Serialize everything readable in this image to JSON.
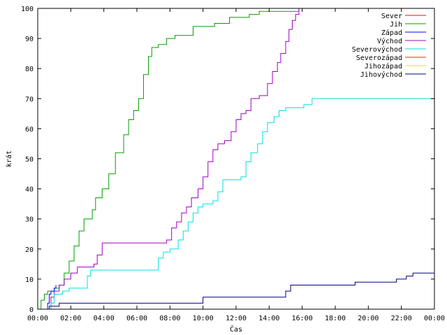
{
  "chart_data": {
    "type": "line",
    "xlabel": "Čas",
    "ylabel": "krát",
    "xlim": [
      0,
      24
    ],
    "ylim": [
      0,
      100
    ],
    "x_ticks": [
      {
        "value": 0,
        "label": "00:00"
      },
      {
        "value": 2,
        "label": "02:00"
      },
      {
        "value": 4,
        "label": "04:00"
      },
      {
        "value": 6,
        "label": "06:00"
      },
      {
        "value": 8,
        "label": "08:00"
      },
      {
        "value": 10,
        "label": "10:00"
      },
      {
        "value": 12,
        "label": "12:00"
      },
      {
        "value": 14,
        "label": "14:00"
      },
      {
        "value": 16,
        "label": "16:00"
      },
      {
        "value": 18,
        "label": "18:00"
      },
      {
        "value": 20,
        "label": "20:00"
      },
      {
        "value": 22,
        "label": "22:00"
      },
      {
        "value": 24,
        "label": "00:00"
      }
    ],
    "y_ticks": [
      {
        "value": 0,
        "label": "0"
      },
      {
        "value": 10,
        "label": "10"
      },
      {
        "value": 20,
        "label": "20"
      },
      {
        "value": 30,
        "label": "30"
      },
      {
        "value": 40,
        "label": "40"
      },
      {
        "value": 50,
        "label": "50"
      },
      {
        "value": 60,
        "label": "60"
      },
      {
        "value": 70,
        "label": "70"
      },
      {
        "value": 80,
        "label": "80"
      },
      {
        "value": 90,
        "label": "90"
      },
      {
        "value": 100,
        "label": "100"
      }
    ],
    "grid": false,
    "legend_position": "top-right",
    "series": [
      {
        "name": "Sever",
        "color": "#ff0000",
        "points": []
      },
      {
        "name": "Jih",
        "color": "#00a000",
        "points": [
          [
            0,
            0
          ],
          [
            0.2,
            3
          ],
          [
            0.4,
            5
          ],
          [
            0.6,
            6
          ],
          [
            1.0,
            7
          ],
          [
            1.3,
            8
          ],
          [
            1.6,
            12
          ],
          [
            1.9,
            16
          ],
          [
            2.2,
            21
          ],
          [
            2.5,
            26
          ],
          [
            2.8,
            30
          ],
          [
            3.3,
            33
          ],
          [
            3.5,
            37
          ],
          [
            3.9,
            40
          ],
          [
            4.3,
            45
          ],
          [
            4.7,
            52
          ],
          [
            5.2,
            58
          ],
          [
            5.5,
            63
          ],
          [
            5.8,
            66
          ],
          [
            6.1,
            70
          ],
          [
            6.4,
            78
          ],
          [
            6.7,
            84
          ],
          [
            6.9,
            87
          ],
          [
            7.3,
            88
          ],
          [
            7.8,
            90
          ],
          [
            8.3,
            91
          ],
          [
            9.4,
            94
          ],
          [
            10.7,
            95
          ],
          [
            11.6,
            97
          ],
          [
            12.8,
            98
          ],
          [
            13.4,
            99
          ],
          [
            15.6,
            99
          ],
          [
            15.8,
            100
          ]
        ]
      },
      {
        "name": "Západ",
        "color": "#0000ff",
        "points": [
          [
            0.5,
            0
          ],
          [
            0.6,
            2
          ],
          [
            0.7,
            5
          ],
          [
            0.8,
            6
          ],
          [
            1.0,
            7
          ],
          [
            1.1,
            8
          ]
        ]
      },
      {
        "name": "Východ",
        "color": "#a000c0",
        "points": [
          [
            0.7,
            0
          ],
          [
            0.8,
            4
          ],
          [
            1.0,
            6
          ],
          [
            1.3,
            8
          ],
          [
            1.6,
            10
          ],
          [
            2.0,
            12
          ],
          [
            2.4,
            14
          ],
          [
            3.4,
            15
          ],
          [
            3.6,
            18
          ],
          [
            3.9,
            22
          ],
          [
            7.8,
            23
          ],
          [
            8.1,
            27
          ],
          [
            8.4,
            29
          ],
          [
            8.7,
            32
          ],
          [
            9.0,
            34
          ],
          [
            9.3,
            37
          ],
          [
            9.7,
            40
          ],
          [
            10.0,
            44
          ],
          [
            10.3,
            49
          ],
          [
            10.6,
            53
          ],
          [
            10.9,
            55
          ],
          [
            11.3,
            56
          ],
          [
            11.7,
            59
          ],
          [
            12.0,
            63
          ],
          [
            12.3,
            65
          ],
          [
            12.6,
            66
          ],
          [
            12.9,
            70
          ],
          [
            13.4,
            71
          ],
          [
            13.9,
            75
          ],
          [
            14.2,
            79
          ],
          [
            14.5,
            82
          ],
          [
            14.7,
            85
          ],
          [
            15.0,
            89
          ],
          [
            15.2,
            93
          ],
          [
            15.4,
            96
          ],
          [
            15.6,
            98
          ],
          [
            15.8,
            100
          ]
        ]
      },
      {
        "name": "Severovýchod",
        "color": "#00e0e0",
        "points": [
          [
            0.6,
            0
          ],
          [
            0.8,
            2
          ],
          [
            1.0,
            5
          ],
          [
            1.5,
            6
          ],
          [
            1.9,
            7
          ],
          [
            3.0,
            11
          ],
          [
            3.2,
            13
          ],
          [
            6.9,
            13
          ],
          [
            7.3,
            17
          ],
          [
            7.6,
            19
          ],
          [
            8.0,
            20
          ],
          [
            8.5,
            23
          ],
          [
            8.8,
            26
          ],
          [
            9.1,
            29
          ],
          [
            9.4,
            32
          ],
          [
            9.7,
            34
          ],
          [
            10.0,
            35
          ],
          [
            10.6,
            36
          ],
          [
            10.9,
            39
          ],
          [
            11.2,
            43
          ],
          [
            12.3,
            44
          ],
          [
            12.6,
            49
          ],
          [
            12.9,
            52
          ],
          [
            13.3,
            55
          ],
          [
            13.6,
            59
          ],
          [
            13.9,
            62
          ],
          [
            14.3,
            64
          ],
          [
            14.6,
            66
          ],
          [
            15.0,
            67
          ],
          [
            15.6,
            67
          ],
          [
            16.1,
            68
          ],
          [
            16.6,
            70
          ],
          [
            24.0,
            70
          ]
        ]
      },
      {
        "name": "Severozápad",
        "color": "#c04000",
        "points": []
      },
      {
        "name": "Jihozápad",
        "color": "#e0e000",
        "points": []
      },
      {
        "name": "Jihovýchod",
        "color": "#000080",
        "points": [
          [
            0.0,
            0
          ],
          [
            0.6,
            0
          ],
          [
            0.7,
            1
          ],
          [
            1.3,
            2
          ],
          [
            9.9,
            2
          ],
          [
            10.0,
            4
          ],
          [
            14.8,
            4
          ],
          [
            15.0,
            6
          ],
          [
            15.3,
            8
          ],
          [
            19.0,
            8
          ],
          [
            19.2,
            9
          ],
          [
            21.5,
            9
          ],
          [
            21.7,
            10
          ],
          [
            22.3,
            11
          ],
          [
            22.7,
            12
          ],
          [
            24.0,
            12
          ]
        ]
      }
    ]
  }
}
